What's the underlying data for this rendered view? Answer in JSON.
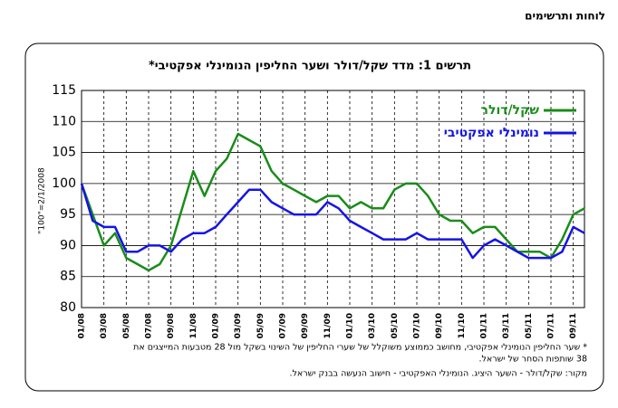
{
  "header": "לוחות ותרשימים",
  "chart_data": {
    "type": "line",
    "title": "תרשים 1: מדד שקל/דולר ושער החליפין הנומינלי אפקטיבי*",
    "y_label": "\"100\"=2/1/2008",
    "categories": [
      "01/08",
      null,
      "03/08",
      null,
      "05/08",
      null,
      "07/08",
      null,
      "09/08",
      null,
      "11/08",
      null,
      "01/09",
      null,
      "03/09",
      null,
      "05/09",
      null,
      "07/09",
      null,
      "09/09",
      null,
      "11/09",
      null,
      "01/10",
      null,
      "03/10",
      null,
      "05/10",
      null,
      "07/10",
      null,
      "09/10",
      null,
      "11/10",
      null,
      "01/11",
      null,
      "03/11",
      null,
      "05/11",
      null,
      "07/11",
      null,
      "09/11",
      null
    ],
    "series": [
      {
        "name": "שקל/דולר",
        "color": "#1a8c1a",
        "values": [
          100,
          95,
          90,
          92,
          88,
          87,
          86,
          87,
          90,
          96,
          102,
          98,
          102,
          104,
          108,
          107,
          106,
          102,
          100,
          99,
          98,
          97,
          98,
          98,
          96,
          97,
          96,
          96,
          99,
          100,
          100,
          98,
          95,
          94,
          94,
          92,
          93,
          93,
          91,
          89,
          89,
          89,
          88,
          91,
          95,
          96
        ]
      },
      {
        "name": "נומינלי אפקטיבי",
        "color": "#1414e6",
        "values": [
          100,
          94,
          93,
          93,
          89,
          89,
          90,
          90,
          89,
          91,
          92,
          92,
          93,
          95,
          97,
          99,
          99,
          97,
          96,
          95,
          95,
          95,
          97,
          96,
          94,
          93,
          92,
          91,
          91,
          91,
          92,
          91,
          91,
          91,
          91,
          88,
          90,
          91,
          90,
          89,
          88,
          88,
          88,
          89,
          93,
          92
        ]
      }
    ],
    "ylim": [
      80,
      115
    ],
    "yticks": [
      80,
      85,
      90,
      95,
      100,
      105,
      110,
      115
    ],
    "grid": true
  },
  "footnote": [
    "* שער החליפין הנומינלי אפקטיבי, מחושב כממוצע משוקלל של שערי החליפין של השינוי בשקל מול 28 מטבעות המייצגים את",
    "38 שותפות הסחר של ישראל."
  ],
  "source": "מקור: שקל/דולר - השער היציג. הנומינלי האפקטיבי - חישוב הנעשה בבנק ישראל."
}
